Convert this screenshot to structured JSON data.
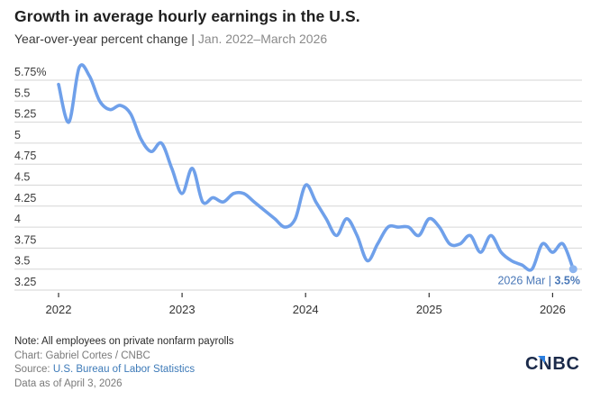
{
  "header": {
    "title": "Growth in average hourly earnings in the U.S.",
    "subtitle_main": "Year-over-year percent change",
    "subtitle_sep": " | ",
    "subtitle_range": "Jan. 2022–March 2026"
  },
  "chart_data": {
    "type": "line",
    "title": "Growth in average hourly earnings in the U.S.",
    "subtitle": "Year-over-year percent change | Jan. 2022–March 2026",
    "xlabel": "",
    "ylabel": "",
    "ylim": [
      3.25,
      5.75
    ],
    "y_ticks": [
      5.75,
      5.5,
      5.25,
      5,
      4.75,
      4.5,
      4.25,
      4,
      3.75,
      3.5,
      3.25
    ],
    "y_tick_labels": [
      "5.75%",
      "5.5",
      "5.25",
      "5",
      "4.75",
      "4.5",
      "4.25",
      "4",
      "3.75",
      "3.5",
      "3.25"
    ],
    "x_ticks": [
      "2022",
      "2023",
      "2024",
      "2025",
      "2026"
    ],
    "grid": true,
    "legend": "none",
    "line_color": "#6fa0ea",
    "x": [
      "2022-01",
      "2022-02",
      "2022-03",
      "2022-04",
      "2022-05",
      "2022-06",
      "2022-07",
      "2022-08",
      "2022-09",
      "2022-10",
      "2022-11",
      "2022-12",
      "2023-01",
      "2023-02",
      "2023-03",
      "2023-04",
      "2023-05",
      "2023-06",
      "2023-07",
      "2023-08",
      "2023-09",
      "2023-10",
      "2023-11",
      "2023-12",
      "2024-01",
      "2024-02",
      "2024-03",
      "2024-04",
      "2024-05",
      "2024-06",
      "2024-07",
      "2024-08",
      "2024-09",
      "2024-10",
      "2024-11",
      "2024-12",
      "2025-01",
      "2025-02",
      "2025-03",
      "2025-04",
      "2025-05",
      "2025-06",
      "2025-07",
      "2025-08",
      "2025-09",
      "2025-10",
      "2025-11",
      "2025-12",
      "2026-01",
      "2026-02",
      "2026-03"
    ],
    "series": [
      {
        "name": "Average hourly earnings, YoY % change",
        "values": [
          5.7,
          5.25,
          5.9,
          5.8,
          5.5,
          5.4,
          5.45,
          5.35,
          5.05,
          4.9,
          5.0,
          4.7,
          4.4,
          4.7,
          4.3,
          4.35,
          4.3,
          4.4,
          4.4,
          4.3,
          4.2,
          4.1,
          4.0,
          4.1,
          4.5,
          4.3,
          4.1,
          3.9,
          4.1,
          3.9,
          3.6,
          3.8,
          4.0,
          4.0,
          4.0,
          3.9,
          4.1,
          4.0,
          3.8,
          3.8,
          3.9,
          3.7,
          3.9,
          3.7,
          3.6,
          3.55,
          3.5,
          3.8,
          3.7,
          3.8,
          3.5
        ]
      }
    ],
    "annotation": {
      "label": "2026 Mar | ",
      "value": "3.5%",
      "point": "2026-03"
    }
  },
  "footer": {
    "note": "Note: All employees on private nonfarm payrolls",
    "credit": "Chart: Gabriel Cortes / CNBC",
    "source_prefix": "Source: ",
    "source_link": "U.S. Bureau of Labor Statistics",
    "data_date": "Data as of April 3, 2026"
  },
  "logo": {
    "text": "CNBC",
    "color": "#1b2a4a",
    "accent": "#2c7fe0"
  }
}
